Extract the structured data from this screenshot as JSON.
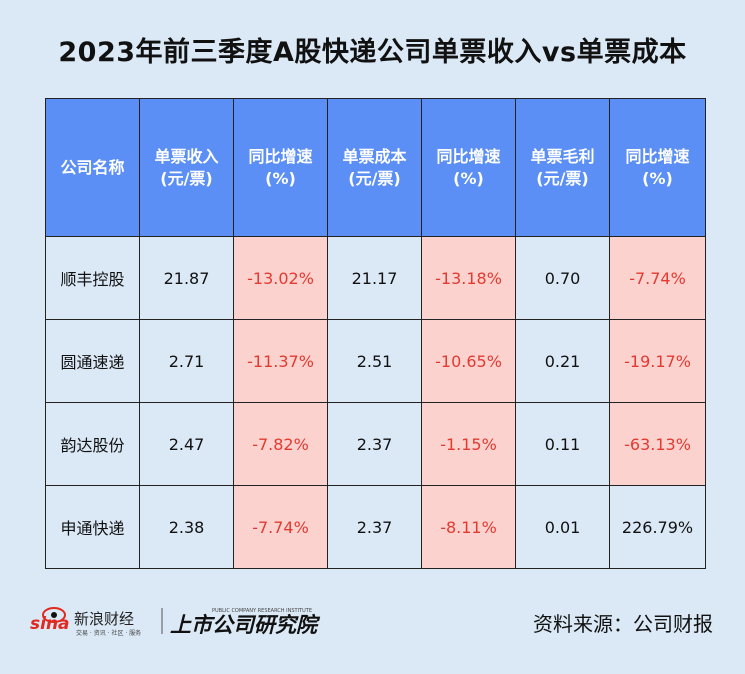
{
  "title": "2023年前三季度A股快递公司单票收入vs单票成本",
  "chart_data": {
    "type": "table",
    "columns": [
      [
        "公司名称"
      ],
      [
        "单票收入",
        "(元/票)"
      ],
      [
        "同比增速",
        "(%)"
      ],
      [
        "单票成本",
        "(元/票)"
      ],
      [
        "同比增速",
        "(%)"
      ],
      [
        "单票毛利",
        "(元/票)"
      ],
      [
        "同比增速",
        "(%)"
      ]
    ],
    "rows": [
      [
        "顺丰控股",
        "21.87",
        "-13.02%",
        "21.17",
        "-13.18%",
        "0.70",
        "-7.74%"
      ],
      [
        "圆通速递",
        "2.71",
        "-11.37%",
        "2.51",
        "-10.65%",
        "0.21",
        "-19.17%"
      ],
      [
        "韵达股份",
        "2.47",
        "-7.82%",
        "2.37",
        "-1.15%",
        "0.11",
        "-63.13%"
      ],
      [
        "申通快递",
        "2.38",
        "-7.74%",
        "2.37",
        "-8.11%",
        "0.01",
        "226.79%"
      ]
    ]
  },
  "logo": {
    "sina_text": "新浪财经",
    "sina_sub": "交易 · 资讯 · 社区 · 服务",
    "institute_text": "上市公司研究院",
    "institute_sub": "PUBLIC COMPANY RESEARCH INSTITUTE"
  },
  "source": "资料来源：公司财报",
  "colors": {
    "header_bg": "#5b8ff5",
    "negative_bg": "#fcd2cf",
    "negative_text": "#e33a30",
    "page_bg": "#dbe9f6",
    "sina_red": "#e02a1f"
  }
}
